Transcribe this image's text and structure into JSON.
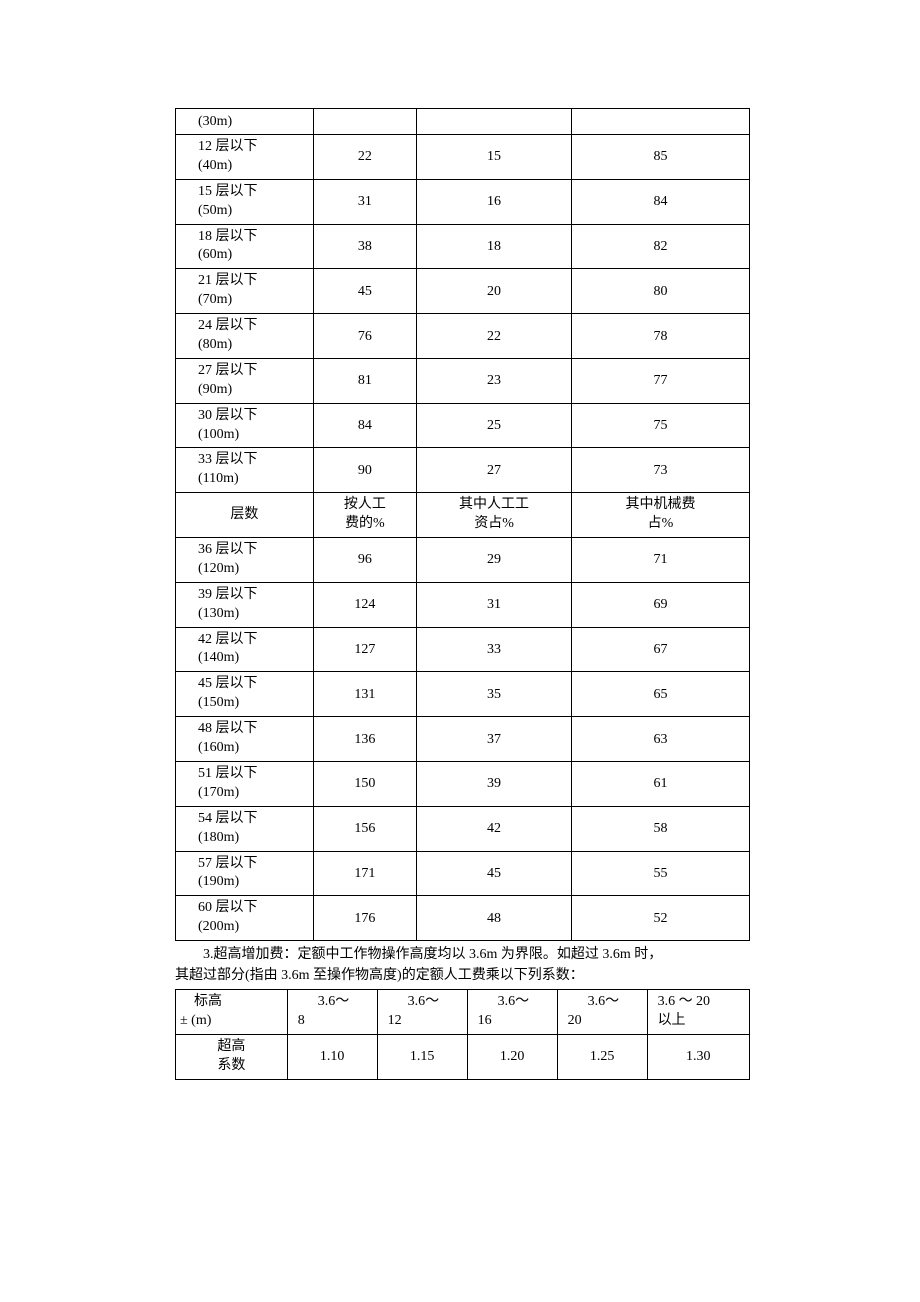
{
  "table1": {
    "colwidths": [
      "24%",
      "18%",
      "27%",
      "31%"
    ],
    "border_color": "#000000",
    "background_color": "#ffffff",
    "text_color": "#000000",
    "fontsize": 14,
    "rows_a": [
      {
        "label": "(30m)",
        "v1": "",
        "v2": "",
        "v3": ""
      },
      {
        "label": "12 层以下\n(40m)",
        "v1": "22",
        "v2": "15",
        "v3": "85"
      },
      {
        "label": "15 层以下\n(50m)",
        "v1": "31",
        "v2": "16",
        "v3": "84"
      },
      {
        "label": "18 层以下\n(60m)",
        "v1": "38",
        "v2": "18",
        "v3": "82"
      },
      {
        "label": "21 层以下\n(70m)",
        "v1": "45",
        "v2": "20",
        "v3": "80"
      },
      {
        "label": "24 层以下\n(80m)",
        "v1": "76",
        "v2": "22",
        "v3": "78"
      },
      {
        "label": "27 层以下\n(90m)",
        "v1": "81",
        "v2": "23",
        "v3": "77"
      },
      {
        "label": "30 层以下\n(100m)",
        "v1": "84",
        "v2": "25",
        "v3": "75"
      },
      {
        "label": "33 层以下\n(110m)",
        "v1": "90",
        "v2": "27",
        "v3": "73"
      }
    ],
    "header": {
      "c1": "层数",
      "c2": "按人工\n费的%",
      "c3": "其中人工工\n资占%",
      "c4": "其中机械费\n占%"
    },
    "rows_b": [
      {
        "label": "36 层以下\n(120m)",
        "v1": "96",
        "v2": "29",
        "v3": "71"
      },
      {
        "label": "39 层以下\n(130m)",
        "v1": "124",
        "v2": "31",
        "v3": "69"
      },
      {
        "label": "42 层以下\n(140m)",
        "v1": "127",
        "v2": "33",
        "v3": "67"
      },
      {
        "label": "45 层以下\n(150m)",
        "v1": "131",
        "v2": "35",
        "v3": "65"
      },
      {
        "label": "48 层以下\n(160m)",
        "v1": "136",
        "v2": "37",
        "v3": "63"
      },
      {
        "label": "51 层以下\n(170m)",
        "v1": "150",
        "v2": "39",
        "v3": "61"
      },
      {
        "label": "54 层以下\n(180m)",
        "v1": "156",
        "v2": "42",
        "v3": "58"
      },
      {
        "label": "57 层以下\n(190m)",
        "v1": "171",
        "v2": "45",
        "v3": "55"
      },
      {
        "label": "60 层以下\n(200m)",
        "v1": "176",
        "v2": "48",
        "v3": "52"
      }
    ]
  },
  "paragraph": {
    "line1": "　　3.超高增加费：定额中工作物操作高度均以 3.6m 为界限。如超过 3.6m 时，",
    "line2": "其超过部分(指由 3.6m 至操作物高度)的定额人工费乘以下列系数："
  },
  "table2": {
    "colwidths": [
      "18%",
      "14.5%",
      "14.5%",
      "14.5%",
      "14.5%",
      "16.5%"
    ],
    "border_color": "#000000",
    "row1": {
      "label": "　标高\n± (m)",
      "c1a": "3.6～",
      "c1b": "8",
      "c2a": "3.6～",
      "c2b": "12",
      "c3a": "3.6～",
      "c3b": "16",
      "c4a": "3.6～",
      "c4b": "20",
      "c5a": "3.6 ～ 20",
      "c5b": "以上"
    },
    "row2": {
      "label": "超高\n系数",
      "v1": "1.10",
      "v2": "1.15",
      "v3": "1.20",
      "v4": "1.25",
      "v5": "1.30"
    }
  }
}
